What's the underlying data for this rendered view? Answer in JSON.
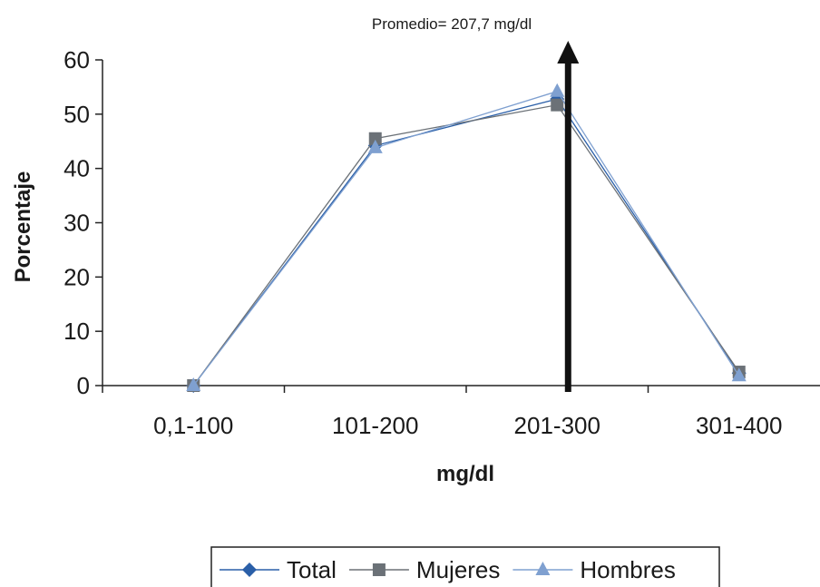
{
  "chart_data": {
    "type": "line",
    "categories": [
      "0,1-100",
      "101-200",
      "201-300",
      "301-400"
    ],
    "series": [
      {
        "name": "Total",
        "values": [
          0,
          44.2,
          52.8,
          2.3
        ],
        "color": "#2a5fa8",
        "marker": "diamond"
      },
      {
        "name": "Mujeres",
        "values": [
          0,
          45.5,
          51.7,
          2.5
        ],
        "color": "#6b7177",
        "marker": "square"
      },
      {
        "name": "Hombres",
        "values": [
          0,
          43.8,
          54.2,
          1.8
        ],
        "color": "#7fa0d0",
        "marker": "triangle"
      }
    ],
    "xlabel": "mg/dl",
    "ylabel": "Porcentaje",
    "ylim": [
      0,
      60
    ],
    "yticks": [
      0,
      10,
      20,
      30,
      40,
      50,
      60
    ],
    "grid": false,
    "legend": "bottom",
    "annotation": {
      "text": "Promedio= 207,7 mg/dl",
      "x_category_position": 2.56
    }
  }
}
